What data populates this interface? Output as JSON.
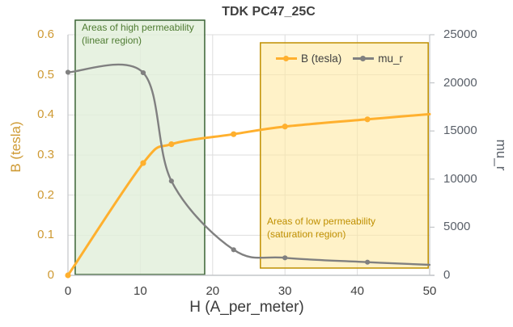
{
  "title": "TDK PC47_25C",
  "chart_data": {
    "type": "line",
    "title": "TDK PC47_25C",
    "xlabel": "H (A_per_meter)",
    "ylabel_left": "B (tesla)",
    "ylabel_right": "mu_r",
    "xlim": [
      0,
      50
    ],
    "ylim_left": [
      0,
      0.6
    ],
    "ylim_right": [
      0,
      25000
    ],
    "x_ticks": [
      "0",
      "10",
      "20",
      "30",
      "40",
      "50"
    ],
    "y_left_ticks": [
      "0",
      "0.1",
      "0.2",
      "0.3",
      "0.4",
      "0.5",
      "0.6"
    ],
    "y_right_ticks": [
      "0",
      "5000",
      "10000",
      "15000",
      "20000",
      "25000"
    ],
    "grid": true,
    "legend_position": "inside-top-right",
    "colors": {
      "grid": "#dddddd",
      "spine": "#c3c6c9",
      "orange_series": "#ffb02e",
      "orange_axis_text": "#ce9932",
      "gray_series": "#808080",
      "gray_axis_text": "#5a6069",
      "dark_text": "#3f3f3f"
    },
    "series": [
      {
        "name": "B (tesla)",
        "axis": "left",
        "color": "#ffb02e",
        "smooth": true,
        "x": [
          0,
          10.4,
          14.3,
          22.9,
          30,
          41.4,
          50
        ],
        "y": [
          0,
          0.28,
          0.327,
          0.352,
          0.371,
          0.389,
          0.402
        ],
        "marker_on_last": false
      },
      {
        "name": "mu_r",
        "axis": "right",
        "color": "#808080",
        "smooth": true,
        "x": [
          0,
          10.4,
          14.3,
          22.9,
          30,
          41.4,
          50
        ],
        "y": [
          21100,
          21050,
          9800,
          2660,
          1820,
          1370,
          1090
        ],
        "marker_on_last": false
      }
    ],
    "regions": [
      {
        "label_line1": "Areas of high permeability",
        "label_line2": "(linear region)",
        "x0": 1.0,
        "x1": 18.9,
        "fill": "#e2efda",
        "border": "#3a6334",
        "text_color": "#4e7b31"
      },
      {
        "label_line1": "Areas of low permeability",
        "label_line2": "(saturation region)",
        "x0": 26.6,
        "x1": 49.8,
        "fill": "#ffe9a3",
        "border": "#bf8f00",
        "text_color": "#bf8f00"
      }
    ]
  },
  "legend": {
    "items": [
      {
        "label": "B (tesla)",
        "color": "#ffb02e"
      },
      {
        "label": "mu_r",
        "color": "#808080"
      }
    ]
  }
}
